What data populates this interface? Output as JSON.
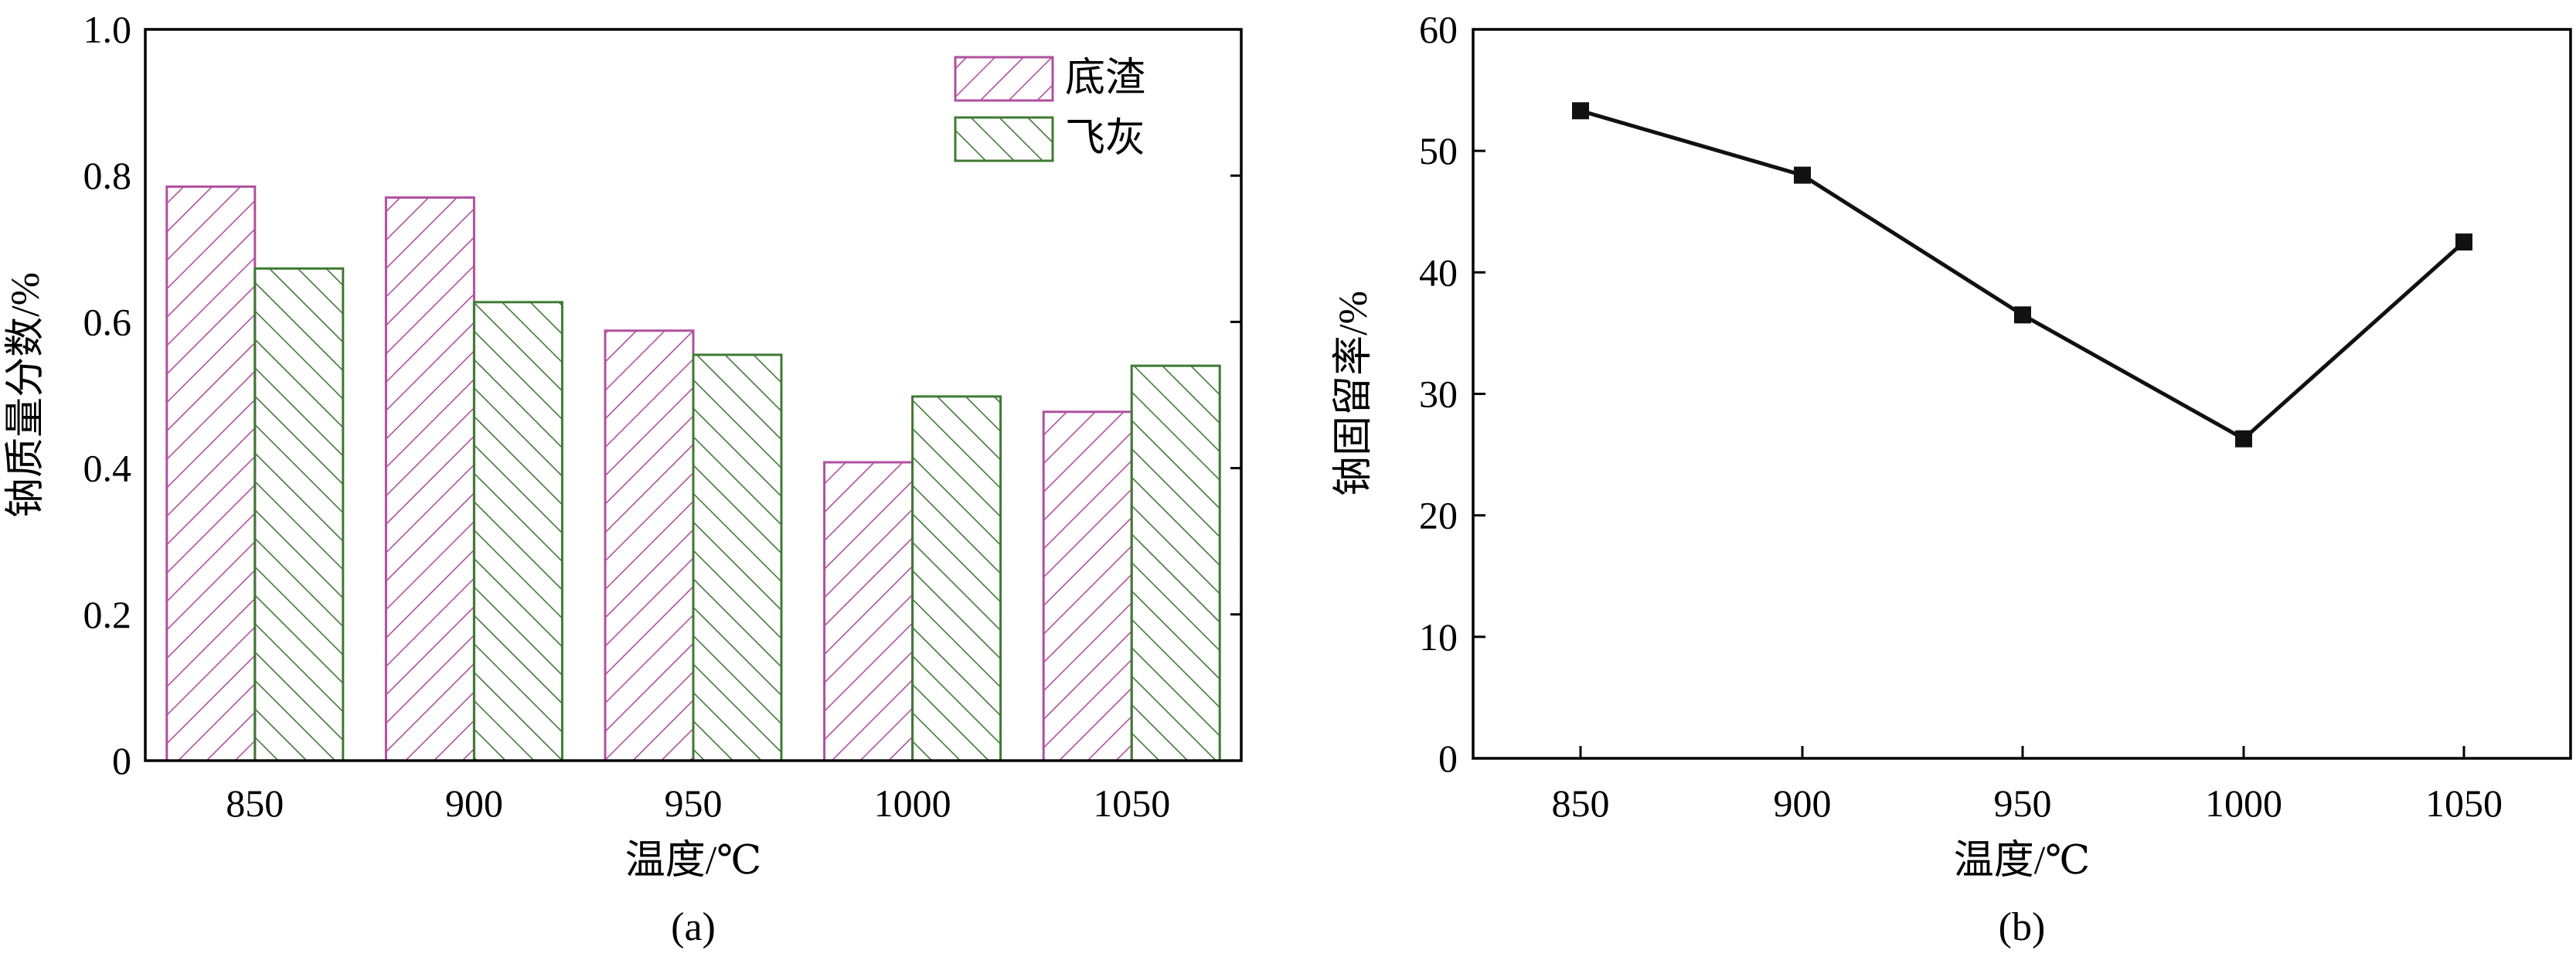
{
  "colors": {
    "bottom_ash": "#b0509f",
    "fly_ash": "#3f7a34",
    "axis": "#000000",
    "line": "#111111"
  },
  "chart_data": [
    {
      "type": "bar",
      "panel_label": "(a)",
      "xlabel": "温度/℃",
      "ylabel": "钠质量分数/%",
      "categories": [
        "850",
        "900",
        "950",
        "1000",
        "1050"
      ],
      "ylim": [
        0,
        1.0
      ],
      "yticks": [
        "0",
        "0.2",
        "0.4",
        "0.6",
        "0.8",
        "1.0"
      ],
      "legend_position": "top-right",
      "series": [
        {
          "name": "底渣",
          "values": [
            0.785,
            0.77,
            0.588,
            0.408,
            0.477
          ]
        },
        {
          "name": "飞灰",
          "values": [
            0.673,
            0.627,
            0.555,
            0.498,
            0.54
          ]
        }
      ]
    },
    {
      "type": "line",
      "panel_label": "(b)",
      "xlabel": "温度/℃",
      "ylabel": "钠固留率/%",
      "x": [
        "850",
        "900",
        "950",
        "1000",
        "1050"
      ],
      "values": [
        53.3,
        48.0,
        36.5,
        26.3,
        42.5
      ],
      "ylim": [
        0,
        60
      ],
      "yticks": [
        "0",
        "10",
        "20",
        "30",
        "40",
        "50",
        "60"
      ],
      "marker": "square"
    }
  ]
}
